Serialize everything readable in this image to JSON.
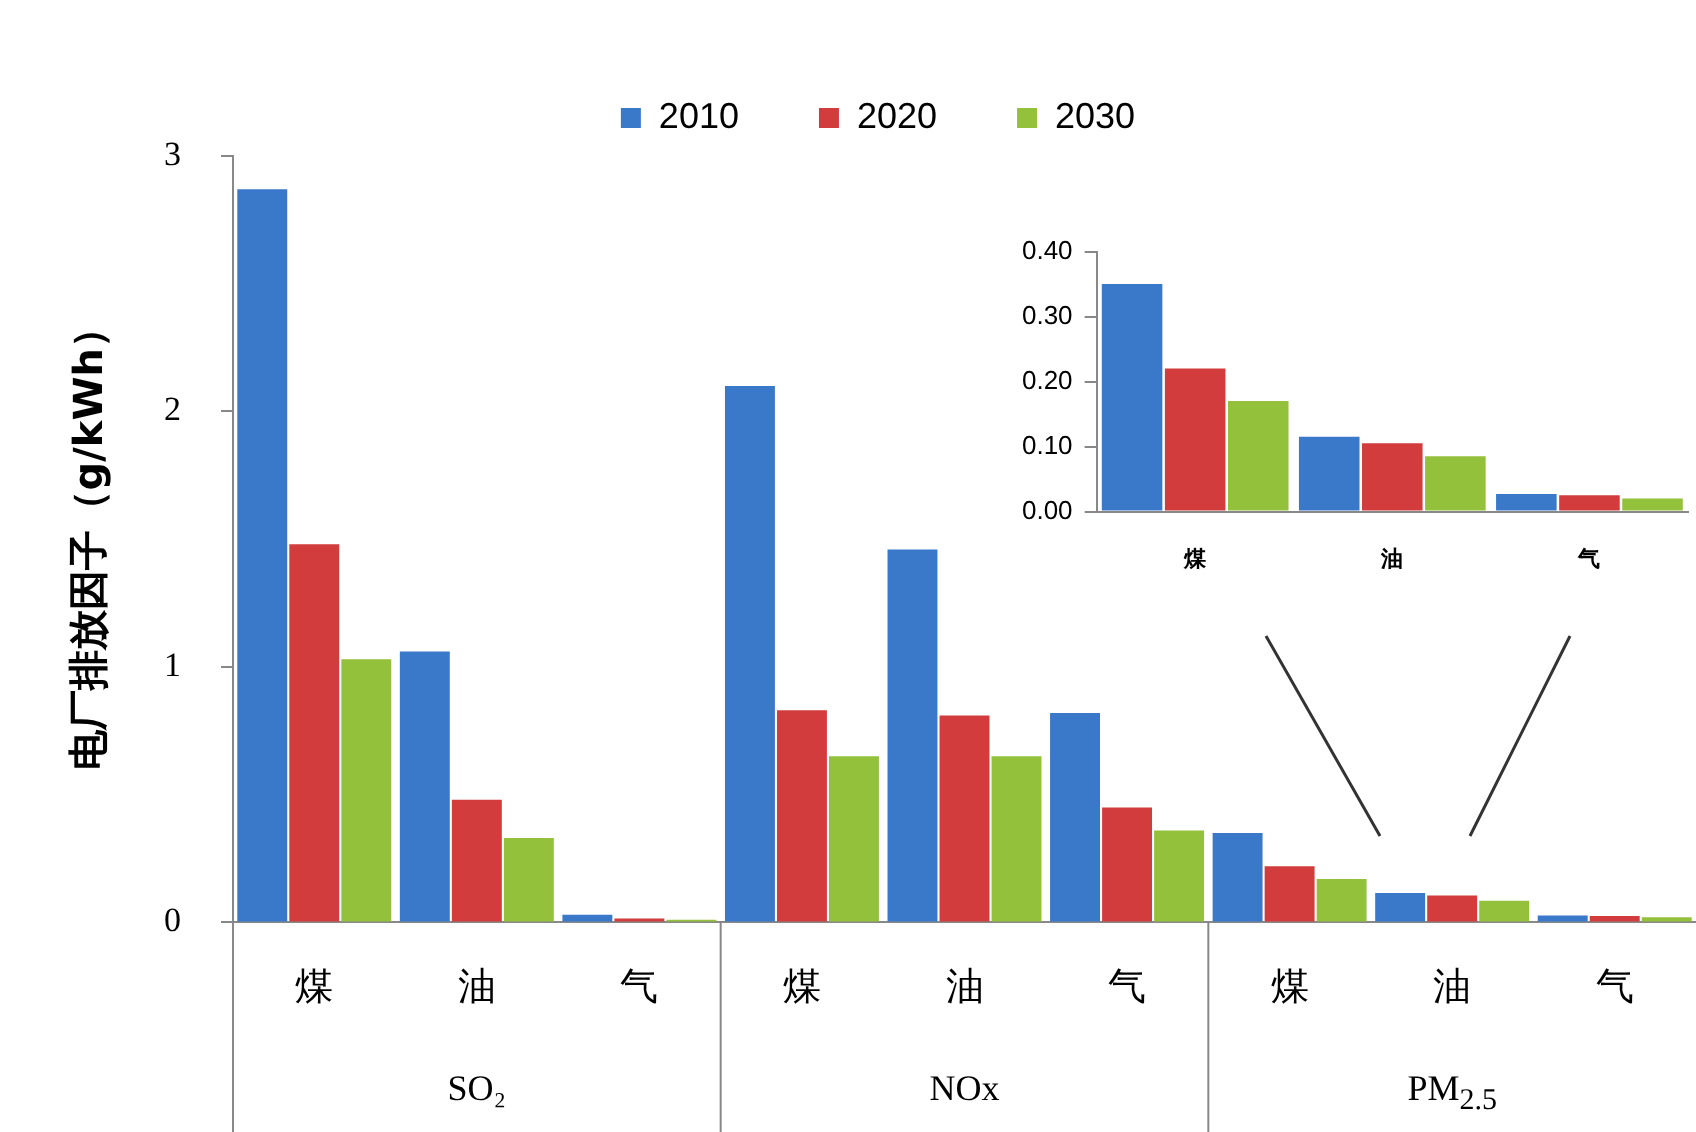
{
  "chart_data": [
    {
      "type": "bar",
      "ylabel": "电厂排放因子（g/kWh）",
      "categories": [
        "煤",
        "油",
        "气",
        "煤",
        "油",
        "气",
        "煤",
        "油",
        "气"
      ],
      "series": [
        {
          "name": "2010",
          "color": "#3a78c9",
          "values": [
            2.87,
            1.06,
            0.03,
            2.1,
            1.46,
            0.82,
            0.35,
            0.115,
            0.027
          ]
        },
        {
          "name": "2020",
          "color": "#d23c3c",
          "values": [
            1.48,
            0.48,
            0.015,
            0.83,
            0.81,
            0.45,
            0.22,
            0.105,
            0.025
          ]
        },
        {
          "name": "2030",
          "color": "#94c13c",
          "values": [
            1.03,
            0.33,
            0.01,
            0.65,
            0.65,
            0.36,
            0.17,
            0.085,
            0.02
          ]
        }
      ],
      "ylim": [
        0,
        3
      ],
      "yticks": [
        0,
        1,
        2,
        3
      ],
      "grid": false,
      "legend": "top",
      "annotations": [
        "SO₂",
        "NOx",
        "PM$_{2.5}$"
      ]
    },
    {
      "type": "bar",
      "categories": [
        "煤",
        "油",
        "气"
      ],
      "series": [
        {
          "color": "#3a78c9",
          "values": [
            0.35,
            0.115,
            0.027
          ]
        },
        {
          "color": "#d23c3c",
          "values": [
            0.22,
            0.105,
            0.025
          ]
        },
        {
          "color": "#94c13c",
          "values": [
            0.17,
            0.085,
            0.02
          ]
        }
      ],
      "ylim": [
        0,
        0.4
      ],
      "yticks": [
        {
          "value": 0,
          "label": "0.00"
        },
        {
          "value": 0.1,
          "label": "0.10"
        },
        {
          "value": 0.2,
          "label": "0.20"
        },
        {
          "value": 0.3,
          "label": "0.30"
        },
        {
          "value": 0.4,
          "label": "0.40"
        }
      ],
      "grid": false
    }
  ]
}
